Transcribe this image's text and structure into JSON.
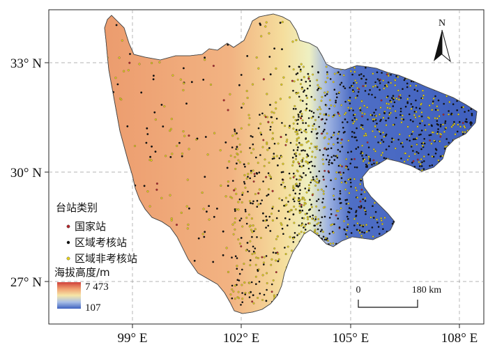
{
  "map": {
    "lat_labels": [
      "33° N",
      "30° N",
      "27° N"
    ],
    "lon_labels": [
      "99° E",
      "102° E",
      "105° E",
      "108° E"
    ],
    "north_label": "N"
  },
  "legend": {
    "station_title": "台站类别",
    "stations": [
      {
        "label": "国家站",
        "color": "#b3262b"
      },
      {
        "label": "区域考核站",
        "color": "#111111"
      },
      {
        "label": "区域非考核站",
        "color": "#e6d21b"
      }
    ],
    "elevation_title": "海拔高度/m",
    "elevation_max": "7 473",
    "elevation_min": "107",
    "elevation_colors": [
      "#d0403a",
      "#f0a070",
      "#f6e6a8",
      "#a9bfe6",
      "#3e62c0"
    ]
  },
  "scale_bar": {
    "start_label": "0",
    "end_label": "180 km"
  }
}
